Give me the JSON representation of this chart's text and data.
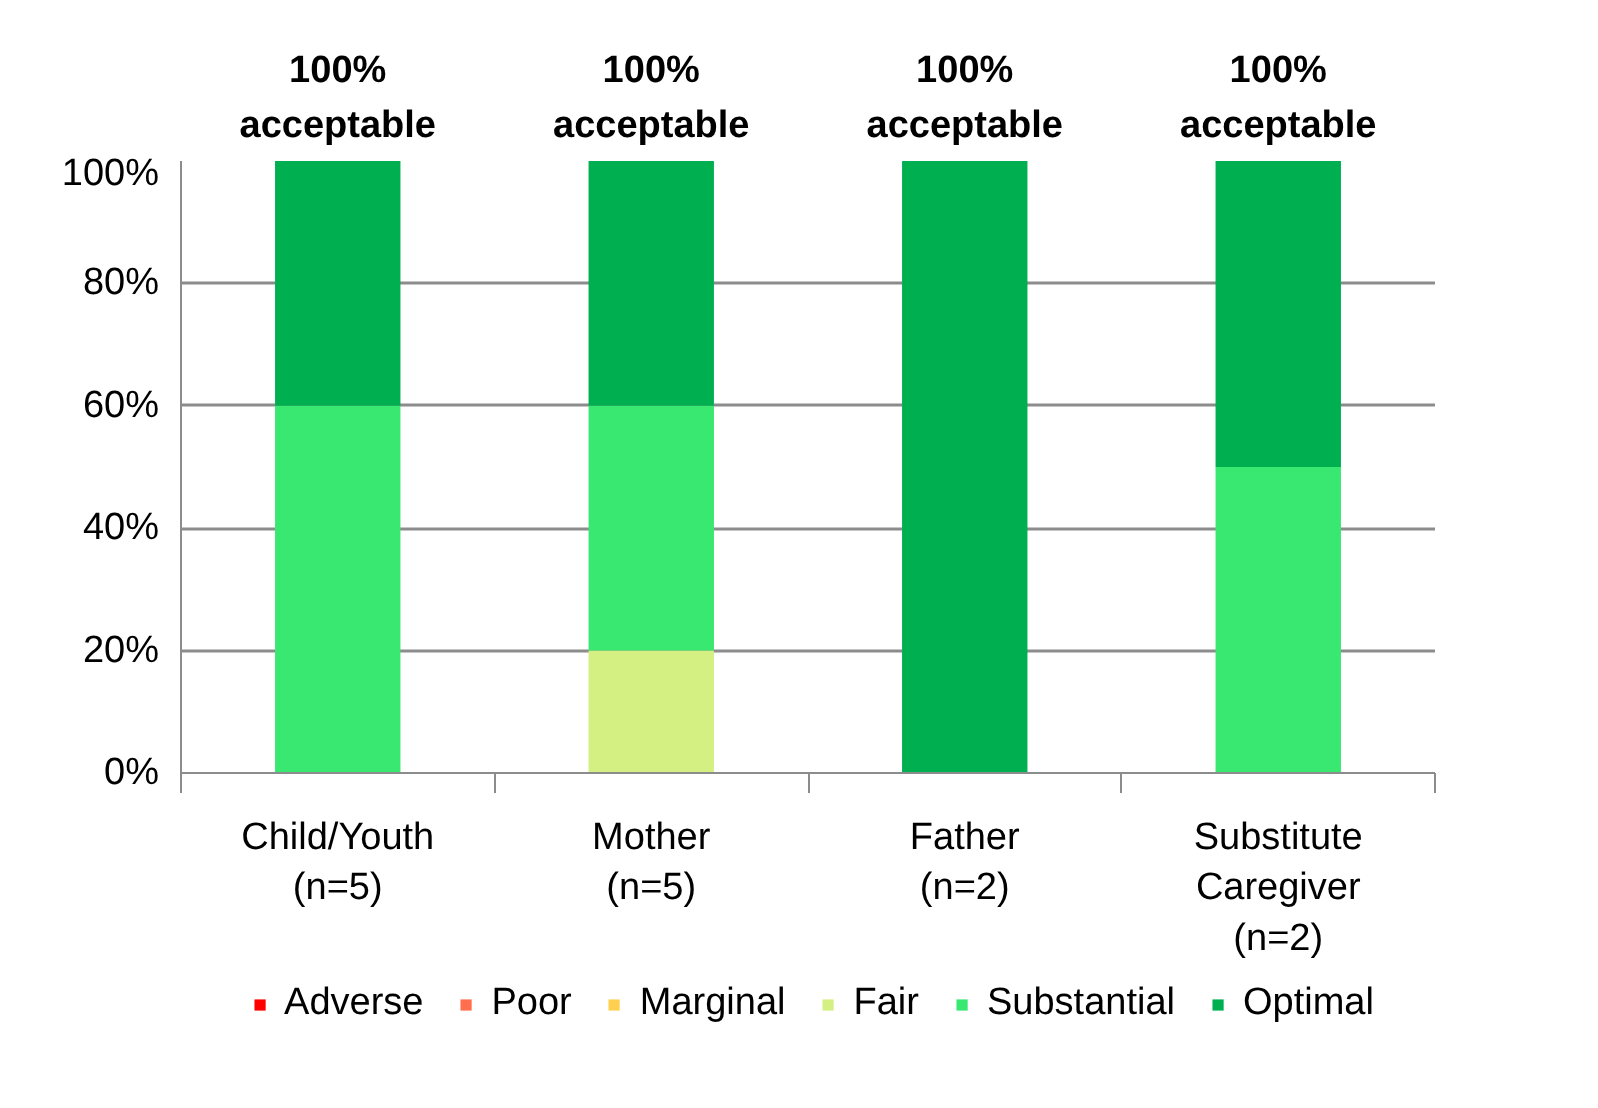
{
  "chart_data": {
    "type": "bar",
    "stacked": true,
    "categories": [
      "Child/Youth\n(n=5)",
      "Mother\n(n=5)",
      "Father\n(n=2)",
      "Substitute\nCaregiver\n(n=2)"
    ],
    "series": [
      {
        "name": "Adverse",
        "color": "#ff0000",
        "values": [
          0,
          0,
          0,
          0
        ]
      },
      {
        "name": "Poor",
        "color": "#ff6f4f",
        "values": [
          0,
          0,
          0,
          0
        ]
      },
      {
        "name": "Marginal",
        "color": "#ffd04f",
        "values": [
          0,
          0,
          0,
          0
        ]
      },
      {
        "name": "Fair",
        "color": "#d4f082",
        "values": [
          0,
          20,
          0,
          0
        ]
      },
      {
        "name": "Substantial",
        "color": "#38e870",
        "values": [
          60,
          40,
          0,
          50
        ]
      },
      {
        "name": "Optimal",
        "color": "#00b050",
        "values": [
          40,
          40,
          100,
          50
        ]
      }
    ],
    "ylim": [
      0,
      100
    ],
    "yticks": [
      {
        "value": 0,
        "label": "0%"
      },
      {
        "value": 20,
        "label": "20%"
      },
      {
        "value": 40,
        "label": "40%"
      },
      {
        "value": 60,
        "label": "60%"
      },
      {
        "value": 80,
        "label": "80%"
      },
      {
        "value": 100,
        "label": "100%"
      }
    ],
    "grid": "y",
    "legend": "bottom",
    "annotations": [
      "100%\nacceptable",
      "100%\nacceptable",
      "100%\nacceptable",
      "100%\nacceptable"
    ]
  }
}
